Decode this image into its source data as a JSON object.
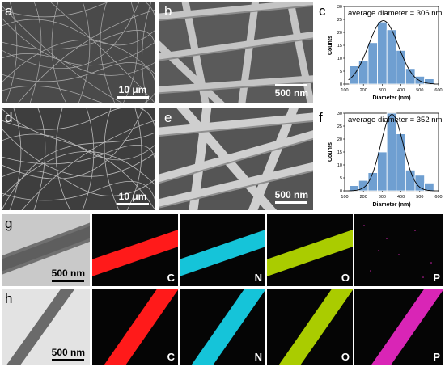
{
  "panels": {
    "a": {
      "label": "a",
      "scale": "10 μm"
    },
    "b": {
      "label": "b",
      "scale": "500 nm"
    },
    "c": {
      "label": "c"
    },
    "d": {
      "label": "d",
      "scale": "10 μm"
    },
    "e": {
      "label": "e",
      "scale": "500 nm"
    },
    "f": {
      "label": "f"
    },
    "g": {
      "label": "g",
      "scale": "500 nm",
      "maps": [
        "C",
        "N",
        "O",
        "P"
      ]
    },
    "h": {
      "label": "h",
      "scale": "500 nm",
      "maps": [
        "C",
        "N",
        "O",
        "P"
      ]
    }
  },
  "map_colors": {
    "C": "#ff1a1a",
    "N": "#19e6ff",
    "O": "#c8f000",
    "P": "#ff2bd6"
  },
  "chart_data": [
    {
      "type": "bar",
      "panel": "c",
      "title": "average diameter = 306 nm",
      "xlabel": "Diameter (nm)",
      "ylabel": "Counts",
      "x": [
        150,
        200,
        250,
        300,
        350,
        400,
        450,
        500,
        550
      ],
      "values": [
        7,
        9,
        16,
        24,
        21,
        13,
        6,
        3,
        2
      ],
      "xlim": [
        100,
        600
      ],
      "ylim": [
        0,
        30
      ],
      "xticks": [
        100,
        200,
        300,
        400,
        500,
        600
      ],
      "yticks": [
        0,
        5,
        10,
        15,
        20,
        25,
        30
      ],
      "fit": "gaussian",
      "fit_center": 306,
      "fit_sigma": 80,
      "fit_peak": 24.5
    },
    {
      "type": "bar",
      "panel": "f",
      "title": "average diameter = 352 nm",
      "xlabel": "Diameter (nm)",
      "ylabel": "Counts",
      "x": [
        150,
        200,
        250,
        300,
        350,
        400,
        450,
        500,
        550
      ],
      "values": [
        2,
        4,
        7,
        15,
        30,
        22,
        8,
        6,
        3
      ],
      "xlim": [
        100,
        600
      ],
      "ylim": [
        0,
        30
      ],
      "xticks": [
        100,
        200,
        300,
        400,
        500,
        600
      ],
      "yticks": [
        0,
        5,
        10,
        15,
        20,
        25,
        30
      ],
      "fit": "gaussian",
      "fit_center": 352,
      "fit_sigma": 60,
      "fit_peak": 29.5
    }
  ]
}
